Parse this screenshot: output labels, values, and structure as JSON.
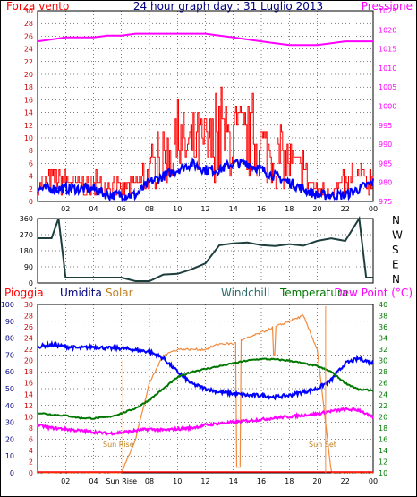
{
  "colors": {
    "wind_red": "#ff0000",
    "blue": "#0000ff",
    "magenta": "#ff00ff",
    "dark_red": "#cc0000",
    "navy": "#000080",
    "solar": "#f08a3c",
    "windchill": "#2b6b6b",
    "temp_green": "#007700",
    "dir_line": "#1e3e3e",
    "sun_label": "#c08020"
  },
  "top": {
    "left_label": "Forza vento",
    "title": "24 hour graph day : 31 Luglio 2013",
    "right_label": "Pressione",
    "left_ticks": [
      "0",
      "2",
      "4",
      "6",
      "8",
      "10",
      "12",
      "14",
      "16",
      "18",
      "20",
      "22",
      "24",
      "26",
      "28",
      "30"
    ],
    "right_ticks": [
      "975",
      "980",
      "985",
      "990",
      "995",
      "1000",
      "1005",
      "1010",
      "1015",
      "1020",
      "1025"
    ],
    "x_ticks": [
      "02",
      "04",
      "06",
      "08",
      "10",
      "12",
      "14",
      "16",
      "18",
      "20",
      "22",
      "00"
    ]
  },
  "middle": {
    "left_ticks": [
      "0",
      "90",
      "180",
      "270",
      "360"
    ],
    "dir_labels": [
      "N",
      "W",
      "S",
      "E",
      "N"
    ]
  },
  "bottom": {
    "headers": {
      "pioggia": "Pioggia",
      "umidita": "Umidita",
      "solar": "Solar",
      "windchill": "Windchill",
      "temperatura": "Temperatura",
      "dew": "Dew Point (°C)"
    },
    "left_ticks": [
      "0",
      "10",
      "20",
      "30",
      "40",
      "50",
      "60",
      "70",
      "80",
      "90",
      "100"
    ],
    "left2_ticks": [
      "0",
      "2",
      "4",
      "6",
      "8",
      "10",
      "12",
      "14",
      "16",
      "18",
      "20",
      "22",
      "24",
      "26",
      "28",
      "30"
    ],
    "right_ticks": [
      "10",
      "12",
      "14",
      "16",
      "18",
      "20",
      "22",
      "24",
      "26",
      "28",
      "30",
      "32",
      "34",
      "36",
      "38",
      "40"
    ],
    "x_ticks": [
      "02",
      "04",
      "Sun Rise",
      "08",
      "10",
      "12",
      "14",
      "16",
      "18",
      "20",
      "22",
      "00"
    ],
    "sun_rise_label": "Sun Rise",
    "sun_set_label": "Sun Set"
  },
  "chart_data": [
    {
      "type": "line",
      "title": "24 hour graph day : 31 Luglio 2013",
      "ylabel": "Forza vento",
      "y2label": "Pressione",
      "x": [
        0,
        1,
        2,
        3,
        4,
        5,
        6,
        7,
        8,
        9,
        10,
        11,
        12,
        13,
        14,
        15,
        16,
        17,
        18,
        19,
        20,
        21,
        22,
        23,
        24
      ],
      "ylim": [
        0,
        30
      ],
      "y2lim": [
        975,
        1025
      ],
      "series": [
        {
          "name": "Forza vento",
          "values": [
            3,
            4,
            4,
            3,
            3,
            3,
            2,
            3,
            5,
            8,
            10,
            10,
            10,
            11,
            12,
            11,
            10,
            8,
            7,
            5,
            2,
            2,
            3,
            4,
            4
          ]
        },
        {
          "name": "",
          "values": [
            2,
            2,
            2,
            2,
            2,
            1,
            1,
            1,
            3,
            4,
            5,
            6,
            5,
            5,
            6,
            6,
            5,
            4,
            3,
            2,
            1,
            1,
            1,
            2,
            3
          ]
        },
        {
          "name": "Pressione",
          "values": [
            1017,
            1017.5,
            1018,
            1018,
            1018,
            1018.5,
            1018.5,
            1019,
            1019,
            1019,
            1019,
            1019,
            1019,
            1018.5,
            1018,
            1017.5,
            1017,
            1016.5,
            1016,
            1016,
            1016,
            1016.5,
            1017,
            1017,
            1017
          ]
        }
      ]
    },
    {
      "type": "line",
      "ylim": [
        0,
        360
      ],
      "x": [
        0,
        1,
        1.5,
        2,
        3,
        4,
        5,
        6,
        7,
        8,
        9,
        10,
        11,
        12,
        13,
        14,
        15,
        16,
        17,
        18,
        19,
        20,
        21,
        22,
        23,
        23.5,
        24
      ],
      "series": [
        {
          "name": "",
          "values": [
            250,
            250,
            360,
            30,
            30,
            30,
            30,
            30,
            10,
            10,
            40,
            60,
            80,
            120,
            200,
            230,
            230,
            200,
            200,
            210,
            220,
            230,
            240,
            250,
            360,
            30,
            30
          ]
        }
      ]
    },
    {
      "type": "line",
      "x": [
        0,
        1,
        2,
        3,
        4,
        5,
        6,
        7,
        8,
        9,
        10,
        11,
        12,
        13,
        14,
        15,
        16,
        17,
        18,
        19,
        20,
        21,
        22,
        23,
        24
      ],
      "series": [
        {
          "name": "Umidita",
          "axis": "percent",
          "values": [
            75,
            76,
            75,
            74,
            75,
            74,
            74,
            73,
            72,
            68,
            60,
            53,
            50,
            48,
            47,
            46,
            46,
            45,
            46,
            48,
            50,
            55,
            65,
            68,
            65
          ]
        },
        {
          "name": "Temperatura",
          "axis": "temp",
          "values": [
            20.7,
            20.4,
            20.2,
            19.8,
            19.7,
            19.9,
            20.6,
            21.5,
            23,
            25,
            27,
            28,
            28.5,
            29,
            29.5,
            30,
            30.3,
            30.2,
            30,
            29.5,
            29,
            28,
            26,
            24.8,
            24.7
          ]
        },
        {
          "name": "Dew Point (°C)",
          "axis": "temp",
          "values": [
            18.5,
            18,
            17.8,
            17.5,
            17.3,
            17,
            17.2,
            17.5,
            17.8,
            17.6,
            17.8,
            18,
            18.5,
            18.8,
            19,
            19.3,
            19.5,
            19.8,
            20,
            20.3,
            20.5,
            21,
            21.3,
            21.2,
            19.8
          ]
        },
        {
          "name": "Solar",
          "axis": "temp",
          "values": [
            10,
            10,
            10,
            10,
            10,
            10,
            10,
            16,
            26,
            31,
            32,
            32,
            32,
            33,
            33,
            34,
            35,
            36,
            37,
            38,
            32,
            10,
            10,
            10,
            10
          ]
        },
        {
          "name": "Pioggia",
          "axis": "percent",
          "values": [
            0,
            0,
            0,
            0,
            0,
            0,
            0,
            0,
            0,
            0,
            0,
            0,
            0,
            0,
            0,
            0,
            0,
            0,
            0,
            0,
            0,
            0,
            0,
            0,
            0
          ]
        }
      ]
    }
  ]
}
